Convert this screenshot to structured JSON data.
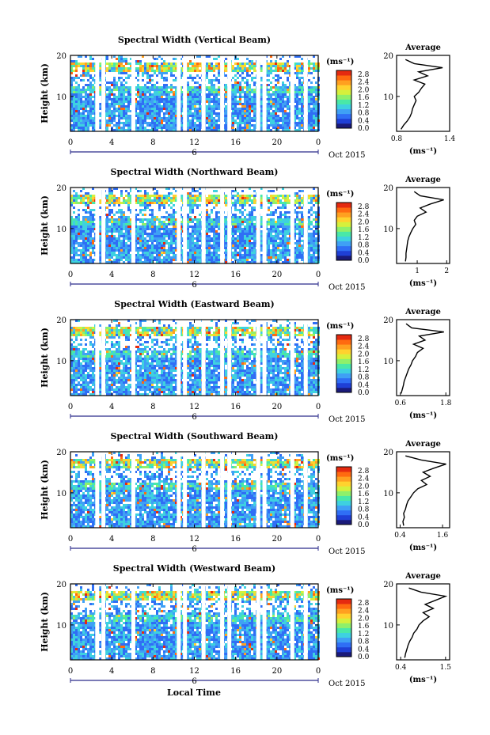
{
  "figure": {
    "xlabel": "Local Time",
    "date_label": "Oct 2015",
    "ylabel": "Height (km)",
    "colorbar_unit": "(ms⁻¹)",
    "avg_title": "Average",
    "avg_unit": "(ms⁻¹)",
    "x_ticks": [
      "0",
      "4",
      "8",
      "12",
      "16",
      "20",
      "0"
    ],
    "x_day": "6",
    "y_ticks": [
      "10",
      "20"
    ],
    "colorbar_ticks": [
      "0.0",
      "0.4",
      "0.8",
      "1.2",
      "1.6",
      "2.0",
      "2.4",
      "2.8"
    ]
  },
  "chart_data": [
    {
      "type": "heatmap",
      "title": "Spectral Width (Vertical Beam)",
      "xlabel": "",
      "ylabel": "Height (km)",
      "x_range": [
        0,
        24
      ],
      "y_range": [
        1.5,
        20
      ],
      "value_range": [
        0,
        3.0
      ],
      "avg_profile": {
        "title": "Average",
        "xlabel": "(ms⁻¹)",
        "xlim": [
          0.8,
          1.4
        ],
        "x_ticks": [
          "0.8",
          "1.4"
        ],
        "height": [
          2,
          3,
          4,
          5,
          6,
          7,
          8,
          9,
          10,
          11,
          12,
          13,
          14,
          15,
          16,
          17,
          18,
          19
        ],
        "values": [
          0.85,
          0.88,
          0.92,
          0.95,
          0.97,
          0.98,
          1.0,
          1.02,
          1.0,
          1.05,
          1.08,
          1.12,
          1.0,
          1.15,
          1.05,
          1.32,
          1.0,
          0.9
        ]
      }
    },
    {
      "type": "heatmap",
      "title": "Spectral Width (Northward Beam)",
      "xlabel": "",
      "ylabel": "Height (km)",
      "x_range": [
        0,
        24
      ],
      "y_range": [
        1.5,
        20
      ],
      "value_range": [
        0,
        3.0
      ],
      "avg_profile": {
        "title": "Average",
        "xlabel": "(ms⁻¹)",
        "xlim": [
          0.3,
          2.1
        ],
        "x_ticks": [
          "1",
          "2"
        ],
        "height": [
          2,
          3,
          4,
          5,
          6,
          7,
          8,
          9,
          10,
          11,
          12,
          13,
          14,
          15,
          16,
          17,
          18,
          19
        ],
        "values": [
          0.6,
          0.62,
          0.62,
          0.64,
          0.66,
          0.68,
          0.72,
          0.78,
          0.85,
          0.95,
          0.9,
          1.0,
          1.3,
          1.1,
          1.45,
          1.9,
          1.1,
          0.9
        ]
      }
    },
    {
      "type": "heatmap",
      "title": "Spectral Width (Eastward Beam)",
      "xlabel": "",
      "ylabel": "Height (km)",
      "x_range": [
        0,
        24
      ],
      "y_range": [
        1.5,
        20
      ],
      "value_range": [
        0,
        3.0
      ],
      "avg_profile": {
        "title": "Average",
        "xlabel": "(ms⁻¹)",
        "xlim": [
          0.5,
          1.9
        ],
        "x_ticks": [
          "0.6",
          "1.8"
        ],
        "height": [
          2,
          3,
          4,
          5,
          6,
          7,
          8,
          9,
          10,
          11,
          12,
          13,
          14,
          15,
          16,
          17,
          18,
          19
        ],
        "values": [
          0.62,
          0.65,
          0.68,
          0.7,
          0.74,
          0.78,
          0.82,
          0.88,
          0.92,
          1.0,
          1.05,
          1.2,
          0.95,
          1.25,
          1.1,
          1.75,
          0.9,
          0.75
        ]
      }
    },
    {
      "type": "heatmap",
      "title": "Spectral Width (Southward Beam)",
      "xlabel": "",
      "ylabel": "Height (km)",
      "x_range": [
        0,
        24
      ],
      "y_range": [
        1.5,
        20
      ],
      "value_range": [
        0,
        3.0
      ],
      "avg_profile": {
        "title": "Average",
        "xlabel": "(ms⁻¹)",
        "xlim": [
          0.3,
          1.8
        ],
        "x_ticks": [
          "0.4",
          "1.6"
        ],
        "height": [
          2,
          3,
          4,
          5,
          6,
          7,
          8,
          9,
          10,
          11,
          12,
          13,
          14,
          15,
          16,
          17,
          18,
          19
        ],
        "values": [
          0.5,
          0.48,
          0.52,
          0.5,
          0.55,
          0.58,
          0.62,
          0.7,
          0.78,
          0.9,
          1.15,
          1.0,
          1.25,
          1.05,
          1.35,
          1.7,
          1.0,
          0.55
        ]
      }
    },
    {
      "type": "heatmap",
      "title": "Spectral Width (Westward Beam)",
      "xlabel": "",
      "ylabel": "Height (km)",
      "x_range": [
        0,
        24
      ],
      "y_range": [
        1.5,
        20
      ],
      "value_range": [
        0,
        3.0
      ],
      "avg_profile": {
        "title": "Average",
        "xlabel": "(ms⁻¹)",
        "xlim": [
          0.3,
          1.6
        ],
        "x_ticks": [
          "0.4",
          "1.5"
        ],
        "height": [
          2,
          3,
          4,
          5,
          6,
          7,
          8,
          9,
          10,
          11,
          12,
          13,
          14,
          15,
          16,
          17,
          18,
          19
        ],
        "values": [
          0.5,
          0.52,
          0.55,
          0.58,
          0.62,
          0.68,
          0.72,
          0.8,
          0.85,
          0.95,
          1.1,
          0.95,
          1.2,
          1.0,
          1.25,
          1.5,
          0.9,
          0.6
        ]
      }
    }
  ]
}
